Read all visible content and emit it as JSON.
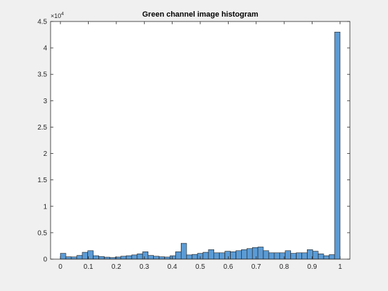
{
  "chart_data": {
    "type": "bar",
    "title": "Green channel image histogram",
    "xlabel": "",
    "ylabel": "",
    "y_exponent_label": "×10",
    "y_exponent_power": "4",
    "xlim": [
      -0.035,
      1.035
    ],
    "ylim": [
      0,
      45000
    ],
    "bin_width": 0.0196,
    "x": [
      0.0098,
      0.0294,
      0.049,
      0.0686,
      0.0882,
      0.1078,
      0.1275,
      0.1471,
      0.1667,
      0.1863,
      0.2059,
      0.2255,
      0.2451,
      0.2647,
      0.2843,
      0.3039,
      0.3235,
      0.3431,
      0.3627,
      0.3824,
      0.402,
      0.4216,
      0.4412,
      0.4608,
      0.4804,
      0.5,
      0.5196,
      0.5392,
      0.5588,
      0.5784,
      0.598,
      0.6176,
      0.6373,
      0.6569,
      0.6765,
      0.6961,
      0.7157,
      0.7353,
      0.7549,
      0.7745,
      0.7941,
      0.8137,
      0.8333,
      0.8529,
      0.8725,
      0.8922,
      0.9118,
      0.9314,
      0.951,
      0.9706,
      0.9902
    ],
    "values": [
      1100,
      450,
      420,
      700,
      1300,
      1600,
      650,
      500,
      380,
      300,
      400,
      550,
      650,
      800,
      1000,
      1400,
      700,
      550,
      450,
      400,
      650,
      1400,
      3000,
      800,
      900,
      1100,
      1300,
      1800,
      1200,
      1200,
      1500,
      1400,
      1600,
      1800,
      2000,
      2200,
      2300,
      1600,
      1200,
      1200,
      1200,
      1600,
      1100,
      1200,
      1200,
      1800,
      1500,
      1000,
      650,
      850,
      43000
    ],
    "xticks": [
      0,
      0.1,
      0.2,
      0.3,
      0.4,
      0.5,
      0.6,
      0.7,
      0.8,
      0.9,
      1
    ],
    "xtick_labels": [
      "0",
      "0.1",
      "0.2",
      "0.3",
      "0.4",
      "0.5",
      "0.6",
      "0.7",
      "0.8",
      "0.9",
      "1"
    ],
    "yticks": [
      0,
      5000,
      10000,
      15000,
      20000,
      25000,
      30000,
      35000,
      40000,
      45000
    ],
    "ytick_labels": [
      "0",
      "0.5",
      "1",
      "1.5",
      "2",
      "2.5",
      "3",
      "3.5",
      "4",
      "4.5"
    ],
    "grid": false,
    "colors": {
      "bar_fill": "#5b9bd5",
      "bar_edge": "#1a1a1a",
      "axes": "#262626",
      "axes_bg": "#ffffff",
      "figure_bg": "#f0f0f0"
    }
  }
}
